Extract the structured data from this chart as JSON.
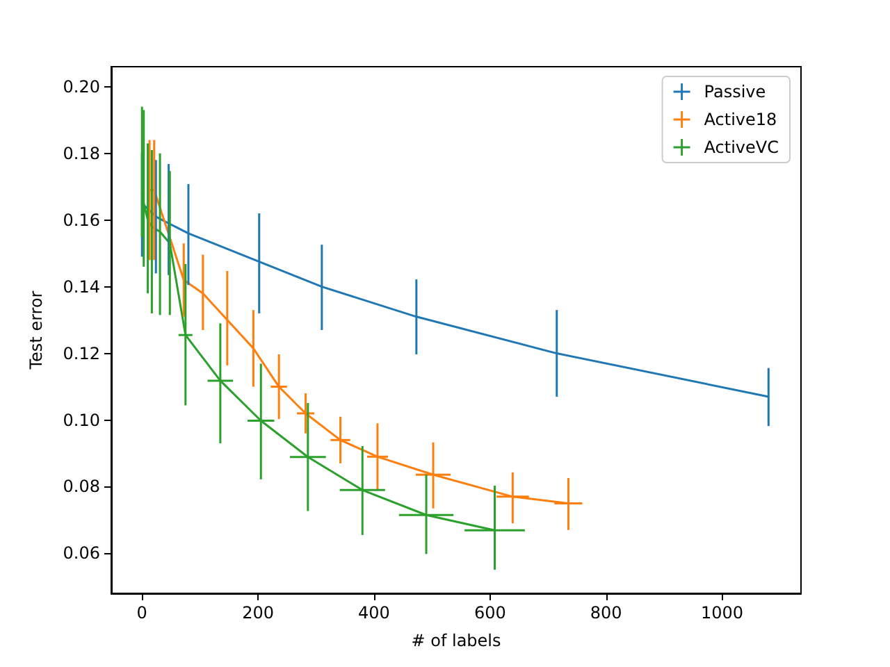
{
  "chart_data": {
    "type": "line",
    "xlabel": "# of labels",
    "ylabel": "Test error",
    "xlim": [
      -53,
      1136
    ],
    "ylim": [
      0.048,
      0.206
    ],
    "xticks": [
      0,
      200,
      400,
      600,
      800,
      1000
    ],
    "yticks": [
      {
        "value": 0.06,
        "label": "0.06"
      },
      {
        "value": 0.08,
        "label": "0.08"
      },
      {
        "value": 0.1,
        "label": "0.10"
      },
      {
        "value": 0.12,
        "label": "0.12"
      },
      {
        "value": 0.14,
        "label": "0.14"
      },
      {
        "value": 0.16,
        "label": "0.16"
      },
      {
        "value": 0.18,
        "label": "0.18"
      },
      {
        "value": 0.2,
        "label": "0.20"
      }
    ],
    "grid": false,
    "legend": "top right",
    "marker": "none",
    "line_style": "solid",
    "series": [
      {
        "name": "Passive",
        "color": "#1f77b4",
        "x": [
          0,
          24,
          46,
          80,
          202,
          310,
          473,
          715,
          1080
        ],
        "values": [
          0.165,
          0.161,
          0.159,
          0.156,
          0.1475,
          0.14,
          0.131,
          0.12,
          0.107
        ],
        "errors": [
          [
            0.149,
            0.18
          ],
          [
            0.144,
            0.178
          ],
          [
            0.1435,
            0.1768
          ],
          [
            0.1405,
            0.1708
          ],
          [
            0.132,
            0.162
          ],
          [
            0.127,
            0.1526
          ],
          [
            0.1197,
            0.1422
          ],
          [
            0.107,
            0.133
          ],
          [
            0.0982,
            0.1156
          ]
        ]
      },
      {
        "name": "Active18",
        "color": "#ff7f0e",
        "x": [
          13,
          21,
          72,
          105,
          147,
          192,
          236,
          282,
          342,
          406,
          502,
          639,
          735
        ],
        "values": [
          0.169,
          0.169,
          0.142,
          0.138,
          0.13,
          0.1215,
          0.11,
          0.102,
          0.094,
          0.089,
          0.0836,
          0.077,
          0.075
        ],
        "errors": [
          [
            0.148,
            0.184
          ],
          [
            0.148,
            0.184
          ],
          [
            0.131,
            0.153
          ],
          [
            0.127,
            0.1496
          ],
          [
            0.1164,
            0.1447
          ],
          [
            0.11,
            0.133
          ],
          [
            0.1003,
            0.1197
          ],
          [
            0.096,
            0.108
          ],
          [
            0.087,
            0.101
          ],
          [
            0.079,
            0.099
          ],
          [
            0.0735,
            0.0933
          ],
          [
            0.069,
            0.0843
          ],
          [
            0.067,
            0.0826
          ]
        ],
        "xerrors": [
          null,
          null,
          null,
          null,
          null,
          null,
          14,
          15,
          17,
          18,
          30,
          28,
          24
        ]
      },
      {
        "name": "ActiveVC",
        "color": "#2ca02c",
        "x": [
          0,
          3,
          10,
          17,
          31,
          48,
          75,
          135,
          205,
          286,
          380,
          490,
          608
        ],
        "values": [
          0.168,
          0.165,
          0.16,
          0.158,
          0.1565,
          0.153,
          0.1255,
          0.1118,
          0.0998,
          0.0889,
          0.079,
          0.0715,
          0.0669
        ],
        "errors": [
          [
            0.155,
            0.194
          ],
          [
            0.146,
            0.193
          ],
          [
            0.138,
            0.183
          ],
          [
            0.132,
            0.181
          ],
          [
            0.1315,
            0.18
          ],
          [
            0.1315,
            0.1747
          ],
          [
            0.1044,
            0.1468
          ],
          [
            0.093,
            0.129
          ],
          [
            0.0822,
            0.1169
          ],
          [
            0.0727,
            0.1051
          ],
          [
            0.0655,
            0.0922
          ],
          [
            0.0598,
            0.0836
          ],
          [
            0.0551,
            0.0803
          ]
        ],
        "xerrors": [
          null,
          null,
          null,
          null,
          null,
          null,
          12,
          22,
          23,
          31,
          39,
          47,
          52
        ]
      }
    ]
  }
}
